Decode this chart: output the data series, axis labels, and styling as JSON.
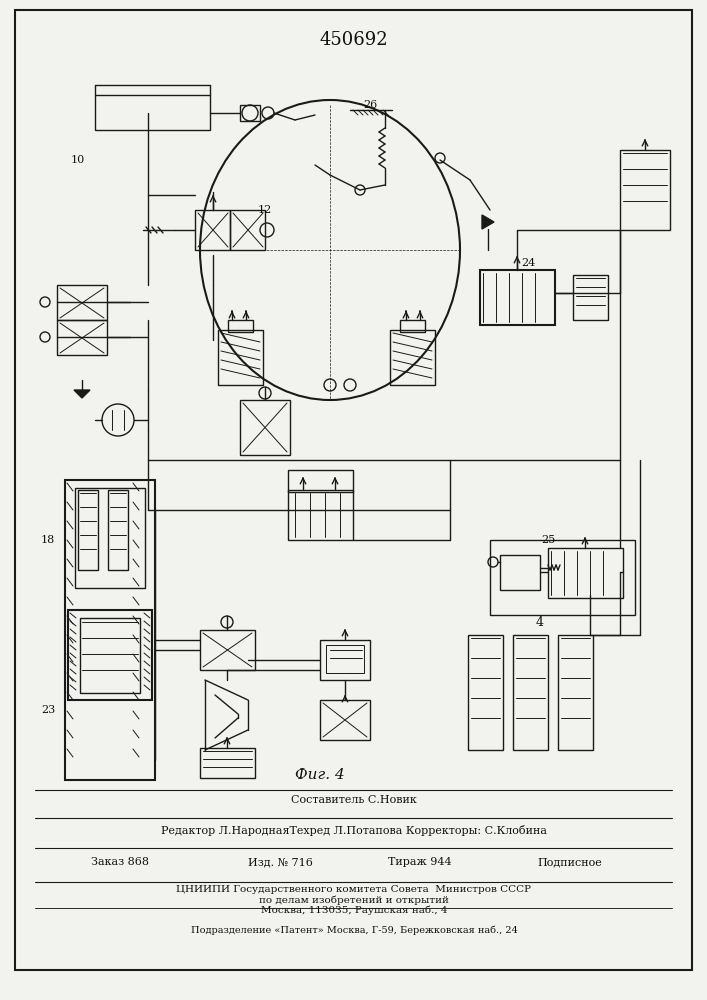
{
  "patent_number": "450692",
  "fig_label": "Фиг. 4",
  "composer_line": "Составитель С.Новик",
  "editor_line": "Редактор Л.НароднаяТехред Л.Потапова Корректоры: С.Клобина",
  "order_line": "Заказ 868        Изд. № 716        Тираж 944        Подписное",
  "org_line1": "ЦНИИПИ Государственного комитета Совета  Министров СССР",
  "org_line2": "по делам изобретений и открытий",
  "org_line3": "Москва, 113035, Раушская наб., 4",
  "print_line": "Подразделение «Патент» Москва, Г-59, Бережковская наб., 24",
  "bg_color": "#f2f2ee",
  "border_color": "#1a1a1a",
  "text_color": "#111111",
  "drawing_color": "#1a1a1a"
}
